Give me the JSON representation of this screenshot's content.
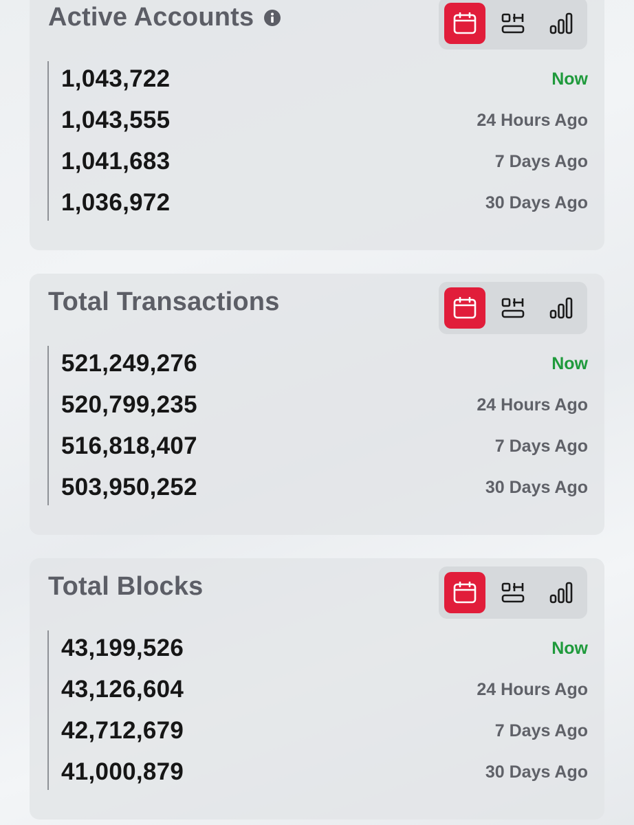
{
  "colors": {
    "accent": "#e11d3a",
    "now_label": "#1f9a3c",
    "title": "#5c5e66",
    "value": "#161616",
    "time_label": "#5f6168"
  },
  "icons": {
    "info": "info-icon",
    "calendar": "calendar-icon",
    "timeline": "timeline-icon",
    "bars": "signal-bars-icon"
  },
  "cards": [
    {
      "title": "Active Accounts",
      "has_info": true,
      "active_view": "calendar",
      "rows": [
        {
          "value": "1,043,722",
          "label": "Now"
        },
        {
          "value": "1,043,555",
          "label": "24 Hours Ago"
        },
        {
          "value": "1,041,683",
          "label": "7 Days Ago"
        },
        {
          "value": "1,036,972",
          "label": "30 Days Ago"
        }
      ]
    },
    {
      "title": "Total Transactions",
      "has_info": false,
      "active_view": "calendar",
      "rows": [
        {
          "value": "521,249,276",
          "label": "Now"
        },
        {
          "value": "520,799,235",
          "label": "24 Hours Ago"
        },
        {
          "value": "516,818,407",
          "label": "7 Days Ago"
        },
        {
          "value": "503,950,252",
          "label": "30 Days Ago"
        }
      ]
    },
    {
      "title": "Total Blocks",
      "has_info": false,
      "active_view": "calendar",
      "rows": [
        {
          "value": "43,199,526",
          "label": "Now"
        },
        {
          "value": "43,126,604",
          "label": "24 Hours Ago"
        },
        {
          "value": "42,712,679",
          "label": "7 Days Ago"
        },
        {
          "value": "41,000,879",
          "label": "30 Days Ago"
        }
      ]
    }
  ]
}
